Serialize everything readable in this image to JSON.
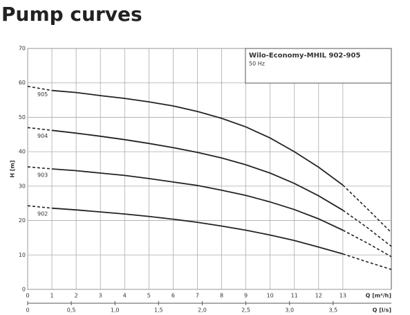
{
  "chart_data": {
    "type": "line",
    "title": "Pump curves",
    "legend_title": "Wilo-Economy-MHIL 902-905",
    "legend_subtitle": "50 Hz",
    "xlabel": "Q [m³/h]",
    "x2label": "Q [l/s]",
    "ylabel": "H [m]",
    "x": [
      0,
      1,
      2,
      3,
      4,
      5,
      6,
      7,
      8,
      9,
      10,
      11,
      12,
      13,
      14,
      15
    ],
    "series": [
      {
        "name": "905",
        "color": "#222222",
        "values": [
          59,
          57.8,
          57.2,
          56.3,
          55.5,
          54.5,
          53.3,
          51.7,
          49.7,
          47.2,
          44,
          40,
          35.5,
          30.3,
          23.5,
          16.5
        ]
      },
      {
        "name": "904",
        "color": "#222222",
        "values": [
          47,
          46.2,
          45.4,
          44.5,
          43.5,
          42.4,
          41.2,
          39.8,
          38.2,
          36.2,
          33.8,
          30.8,
          27.2,
          23,
          18,
          12.5
        ]
      },
      {
        "name": "903",
        "color": "#222222",
        "values": [
          35.6,
          35,
          34.5,
          33.8,
          33.1,
          32.2,
          31.2,
          30.2,
          28.8,
          27.3,
          25.4,
          23.2,
          20.5,
          17.2,
          13.5,
          9.5
        ]
      },
      {
        "name": "902",
        "color": "#222222",
        "values": [
          24.3,
          23.6,
          23.1,
          22.5,
          21.9,
          21.2,
          20.4,
          19.5,
          18.4,
          17.2,
          15.8,
          14.2,
          12.3,
          10.3,
          8,
          5.8
        ]
      }
    ],
    "dashed_outside": [
      1,
      13
    ],
    "xlim": [
      0,
      15
    ],
    "xticks": [
      0,
      1,
      2,
      3,
      4,
      5,
      6,
      7,
      8,
      9,
      10,
      11,
      12,
      13
    ],
    "x2lim": [
      0,
      4.1667
    ],
    "x2ticks": [
      0,
      {
        "value": 0.5,
        "label": "0,5"
      },
      {
        "value": 1.0,
        "label": "1,0"
      },
      {
        "value": 1.5,
        "label": "1,5"
      },
      {
        "value": 2.0,
        "label": "2,0"
      },
      {
        "value": 2.5,
        "label": "2,5"
      },
      {
        "value": 3.0,
        "label": "3,0"
      },
      {
        "value": 3.5,
        "label": "3,5"
      }
    ],
    "ylim": [
      0,
      70
    ],
    "yticks": [
      0,
      10,
      20,
      30,
      40,
      50,
      60,
      70
    ],
    "grid": true
  }
}
